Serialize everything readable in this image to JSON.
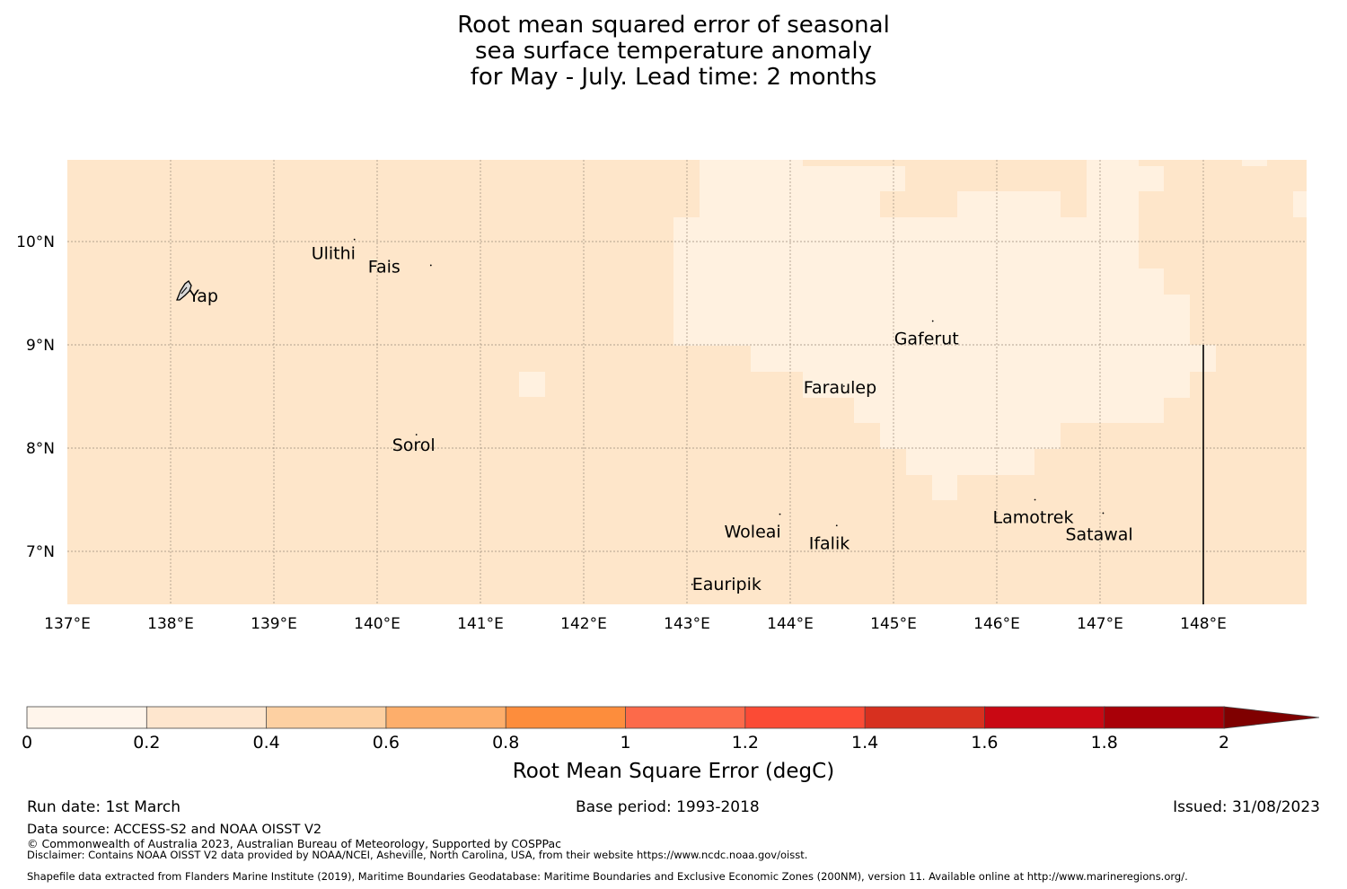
{
  "title": {
    "lines": [
      "Root mean squared error of seasonal",
      "sea surface temperature anomaly",
      "for May - July. Lead time: 2 months"
    ]
  },
  "map": {
    "lon_ticks": [
      "137°E",
      "138°E",
      "139°E",
      "140°E",
      "141°E",
      "142°E",
      "143°E",
      "144°E",
      "145°E",
      "146°E",
      "147°E",
      "148°E"
    ],
    "lat_ticks": [
      "10°N",
      "9°N",
      "8°N",
      "7°N"
    ],
    "extent": {
      "lon": [
        137.0,
        149.0
      ],
      "lat": [
        6.5,
        10.8
      ]
    },
    "base_color": "#fee6ca",
    "low_color": "#fff1e0",
    "islands": [
      {
        "name": "Yap",
        "lon": 138.15,
        "lat": 9.52
      },
      {
        "name": "Ulithi",
        "lon": 139.78,
        "lat": 10.02
      },
      {
        "name": "Fais",
        "lon": 140.52,
        "lat": 9.77
      },
      {
        "name": "Gaferut",
        "lon": 145.38,
        "lat": 9.23
      },
      {
        "name": "Faraulep",
        "lon": 144.52,
        "lat": 8.6
      },
      {
        "name": "Sorol",
        "lon": 140.38,
        "lat": 8.13
      },
      {
        "name": "Woleai",
        "lon": 143.9,
        "lat": 7.36
      },
      {
        "name": "Ifalik",
        "lon": 144.45,
        "lat": 7.25
      },
      {
        "name": "Lamotrek",
        "lon": 146.37,
        "lat": 7.5
      },
      {
        "name": "Satawal",
        "lon": 147.03,
        "lat": 7.37
      },
      {
        "name": "Eauripik",
        "lon": 143.05,
        "lat": 6.68
      }
    ]
  },
  "colorbar": {
    "label": "Root Mean Square Error (degC)",
    "ticks": [
      "0",
      "0.2",
      "0.4",
      "0.6",
      "0.8",
      "1",
      "1.2",
      "1.4",
      "1.6",
      "1.8",
      "2"
    ],
    "colors": [
      "#fff5eb",
      "#fee6ce",
      "#fdd0a2",
      "#fdae6b",
      "#fd8d3c",
      "#fc6a4a",
      "#fb4b35",
      "#d7301f",
      "#c90813",
      "#a90008"
    ],
    "extend_color": "#7f0000"
  },
  "footer": {
    "run_date": "Run date: 1st March",
    "base_period": "Base period: 1993-2018",
    "issued": "Issued: 31/08/2023",
    "data_source": "Data source: ACCESS-S2 and NOAA OISST V2",
    "copyright": "© Commonwealth of Australia 2023, Australian Bureau of Meteorology, Supported by COSPPac",
    "disclaimer": "Disclaimer: Contains NOAA OISST V2 data provided by NOAA/NCEI, Asheville, North Carolina, USA, from their website https://www.ncdc.noaa.gov/oisst.",
    "shapefile": "Shapefile data extracted from Flanders Marine Institute (2019), Maritime Boundaries Geodatabase: Maritime Boundaries and Exclusive Economic Zones (200NM), version 11. Available online at http://www.marineregions.org/."
  }
}
